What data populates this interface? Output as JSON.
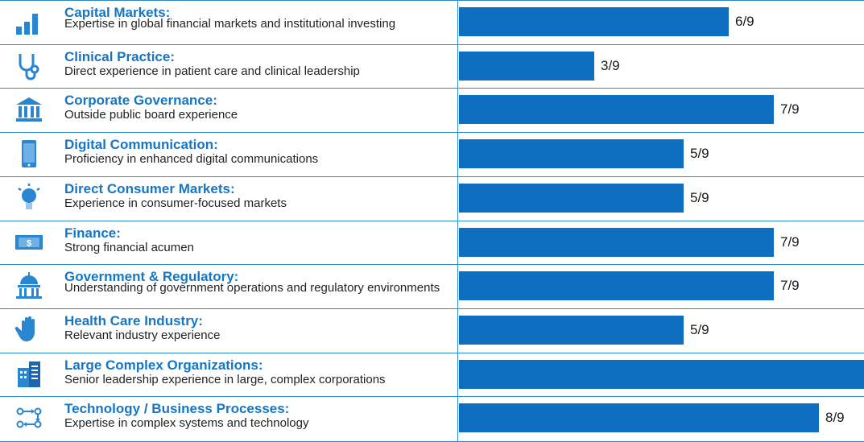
{
  "chart_data": {
    "type": "bar",
    "orientation": "horizontal",
    "max": 9,
    "categories": [
      {
        "title": "Capital Markets:",
        "description": "Expertise in global financial markets and institutional investing",
        "value": 6,
        "label": "6/9",
        "icon": "bar-chart-icon"
      },
      {
        "title": "Clinical Practice:",
        "description": "Direct experience in patient care and clinical leadership",
        "value": 3,
        "label": "3/9",
        "icon": "stethoscope-icon"
      },
      {
        "title": "Corporate Governance:",
        "description": "Outside public board experience",
        "value": 7,
        "label": "7/9",
        "icon": "building-columns-icon"
      },
      {
        "title": "Digital Communication:",
        "description": "Proficiency in enhanced digital communications",
        "value": 5,
        "label": "5/9",
        "icon": "smartphone-icon"
      },
      {
        "title": "Direct Consumer Markets:",
        "description": "Experience in consumer-focused markets",
        "value": 5,
        "label": "5/9",
        "icon": "lightbulb-icon"
      },
      {
        "title": "Finance:",
        "description": "Strong financial acumen",
        "value": 7,
        "label": "7/9",
        "icon": "dollar-bill-icon"
      },
      {
        "title": "Government & Regulatory:",
        "description": "Understanding of government operations and regulatory environments",
        "value": 7,
        "label": "7/9",
        "icon": "capitol-dome-icon"
      },
      {
        "title": "Health Care Industry:",
        "description": "Relevant industry experience",
        "value": 5,
        "label": "5/9",
        "icon": "hand-icon"
      },
      {
        "title": "Large Complex Organizations:",
        "description": "Senior leadership experience in large, complex corporations",
        "value": 9,
        "label": "",
        "icon": "office-buildings-icon"
      },
      {
        "title": "Technology / Business Processes:",
        "description": "Expertise in complex systems and technology",
        "value": 8,
        "label": "8/9",
        "icon": "process-flow-icon"
      }
    ]
  },
  "colors": {
    "accent": "#1576c5",
    "bar": "#0e6fc1",
    "divider": "#2f8ad2"
  }
}
